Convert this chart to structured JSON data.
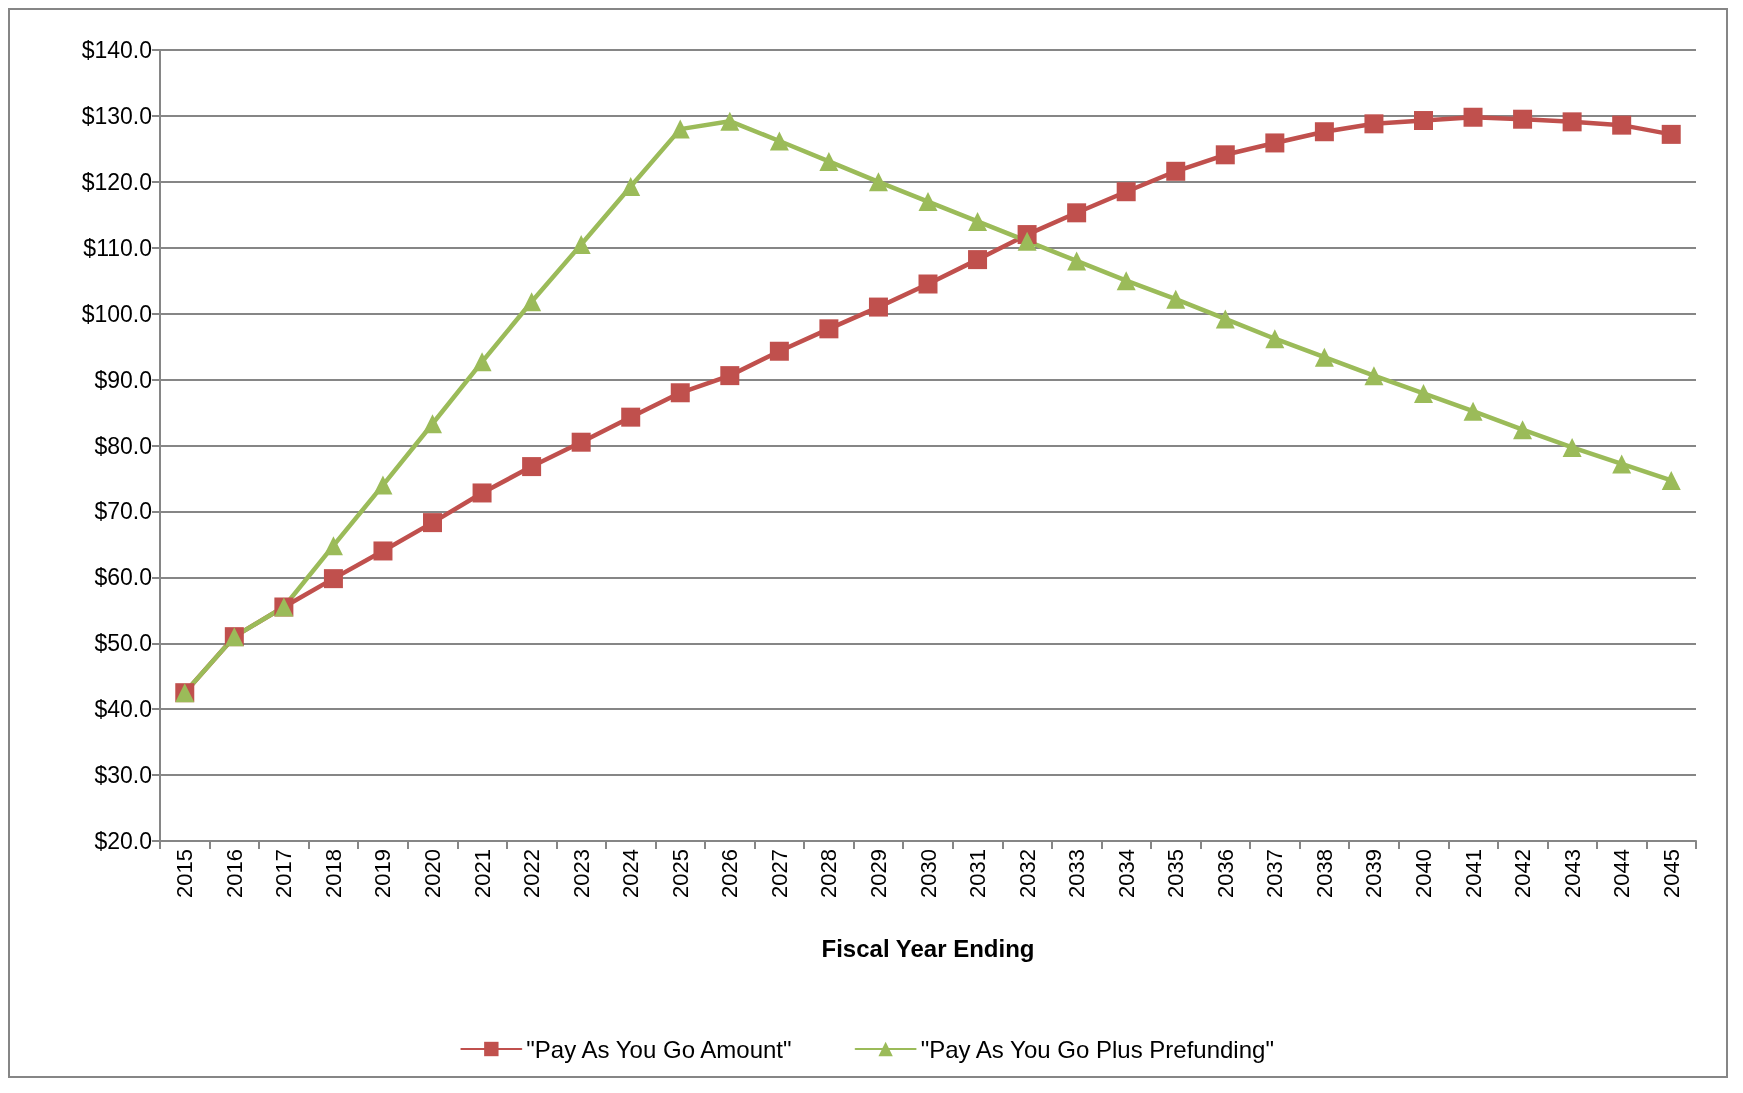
{
  "chart_data": {
    "type": "line",
    "xlabel": "Fiscal Year Ending",
    "categories": [
      "2015",
      "2016",
      "2017",
      "2018",
      "2019",
      "2020",
      "2021",
      "2022",
      "2023",
      "2024",
      "2025",
      "2026",
      "2027",
      "2028",
      "2029",
      "2030",
      "2031",
      "2032",
      "2033",
      "2034",
      "2035",
      "2036",
      "2037",
      "2038",
      "2039",
      "2040",
      "2041",
      "2042",
      "2043",
      "2044",
      "2045"
    ],
    "series": [
      {
        "name": "\"Pay As You Go Amount\"",
        "color": "#c0504d",
        "marker": "square",
        "values": [
          42.5,
          51,
          55.5,
          59.8,
          64,
          68.3,
          72.8,
          76.8,
          80.5,
          84.3,
          88,
          90.6,
          94.3,
          97.7,
          101,
          104.5,
          108.2,
          112,
          115.3,
          118.5,
          121.6,
          124.1,
          125.9,
          127.6,
          128.8,
          129.3,
          129.8,
          129.5,
          129.1,
          128.6,
          127.2
        ]
      },
      {
        "name": "\"Pay As You Go Plus Prefunding\"",
        "color": "#9bbb59",
        "marker": "triangle",
        "values": [
          42.5,
          51,
          55.5,
          64.8,
          74,
          83.3,
          92.7,
          101.8,
          110.5,
          119.3,
          128,
          129.2,
          126.2,
          123.1,
          120,
          117,
          114,
          111,
          108,
          105,
          102.2,
          99.2,
          96.2,
          93.4,
          90.6,
          87.9,
          85.2,
          82.4,
          79.7,
          77.2,
          74.7
        ]
      }
    ],
    "ylim": [
      20,
      140
    ],
    "yticks": [
      {
        "value": 20,
        "label": "$20.0"
      },
      {
        "value": 30,
        "label": "$30.0"
      },
      {
        "value": 40,
        "label": "$40.0"
      },
      {
        "value": 50,
        "label": "$50.0"
      },
      {
        "value": 60,
        "label": "$60.0"
      },
      {
        "value": 70,
        "label": "$70.0"
      },
      {
        "value": 80,
        "label": "$80.0"
      },
      {
        "value": 90,
        "label": "$90.0"
      },
      {
        "value": 100,
        "label": "$100.0"
      },
      {
        "value": 110,
        "label": "$110.0"
      },
      {
        "value": 120,
        "label": "$120.0"
      },
      {
        "value": 130,
        "label": "$130.0"
      },
      {
        "value": 140,
        "label": "$140.0"
      }
    ],
    "grid": "y",
    "legend": "bottom",
    "line_style": "solid"
  }
}
